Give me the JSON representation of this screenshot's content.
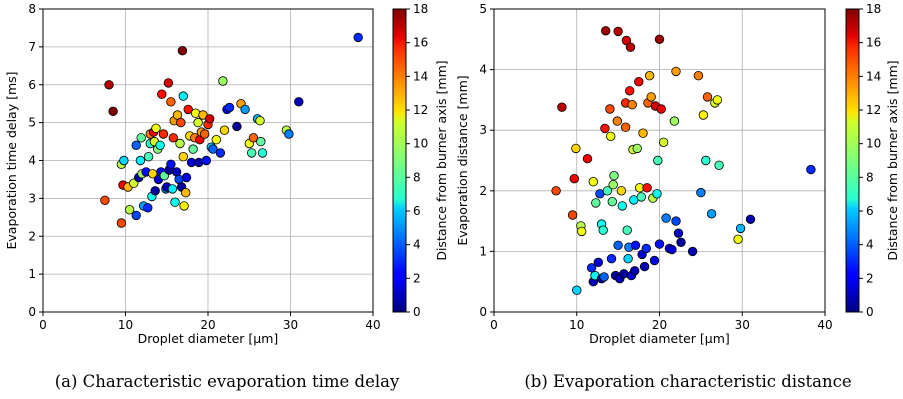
{
  "chart_data": [
    {
      "type": "scatter",
      "caption": "(a) Characteristic evaporation time delay",
      "xlabel": "Droplet diameter [µm]",
      "ylabel": "Evaporation time delay [ms]",
      "xlim": [
        0,
        40
      ],
      "ylim": [
        0,
        8
      ],
      "xticks": [
        0,
        10,
        20,
        30,
        40
      ],
      "yticks": [
        0,
        1,
        2,
        3,
        4,
        5,
        6,
        7,
        8
      ],
      "grid": true,
      "colorbar": {
        "label": "Distance from burner axis [mm]",
        "range": [
          0,
          18
        ],
        "ticks": [
          0,
          2,
          4,
          6,
          8,
          10,
          12,
          14,
          16,
          18
        ],
        "colormap": "jet"
      },
      "points": [
        {
          "x": 7.5,
          "y": 2.95,
          "c": 14.5
        },
        {
          "x": 8.0,
          "y": 6.0,
          "c": 17.0
        },
        {
          "x": 8.5,
          "y": 5.3,
          "c": 18.0
        },
        {
          "x": 9.5,
          "y": 2.35,
          "c": 14.5
        },
        {
          "x": 9.5,
          "y": 3.9,
          "c": 10.0
        },
        {
          "x": 9.7,
          "y": 3.35,
          "c": 16.0
        },
        {
          "x": 9.8,
          "y": 4.0,
          "c": 6.0
        },
        {
          "x": 10.3,
          "y": 3.3,
          "c": 12.5
        },
        {
          "x": 10.5,
          "y": 2.7,
          "c": 10.0
        },
        {
          "x": 11.0,
          "y": 3.4,
          "c": 10.5
        },
        {
          "x": 11.3,
          "y": 4.4,
          "c": 4.0
        },
        {
          "x": 11.3,
          "y": 2.55,
          "c": 3.5
        },
        {
          "x": 11.6,
          "y": 3.55,
          "c": 0.8
        },
        {
          "x": 11.8,
          "y": 4.0,
          "c": 6.5
        },
        {
          "x": 11.9,
          "y": 4.6,
          "c": 8.5
        },
        {
          "x": 12.0,
          "y": 3.65,
          "c": 9.5
        },
        {
          "x": 12.2,
          "y": 2.8,
          "c": 5.0
        },
        {
          "x": 12.5,
          "y": 3.7,
          "c": 2.5
        },
        {
          "x": 12.7,
          "y": 2.75,
          "c": 3.0
        },
        {
          "x": 12.8,
          "y": 4.1,
          "c": 8.0
        },
        {
          "x": 13.0,
          "y": 4.45,
          "c": 7.5
        },
        {
          "x": 13.0,
          "y": 4.7,
          "c": 13.5
        },
        {
          "x": 13.2,
          "y": 3.05,
          "c": 7.0
        },
        {
          "x": 13.3,
          "y": 3.65,
          "c": 12.0
        },
        {
          "x": 13.4,
          "y": 4.75,
          "c": 16.0
        },
        {
          "x": 13.5,
          "y": 4.5,
          "c": 10.5
        },
        {
          "x": 13.6,
          "y": 3.2,
          "c": 0.5
        },
        {
          "x": 13.7,
          "y": 4.85,
          "c": 11.0
        },
        {
          "x": 13.9,
          "y": 4.3,
          "c": 9.0
        },
        {
          "x": 14.0,
          "y": 3.5,
          "c": 1.5
        },
        {
          "x": 14.2,
          "y": 4.4,
          "c": 7.0
        },
        {
          "x": 14.3,
          "y": 3.7,
          "c": 2.0
        },
        {
          "x": 14.4,
          "y": 5.75,
          "c": 15.5
        },
        {
          "x": 14.6,
          "y": 4.7,
          "c": 15.0
        },
        {
          "x": 14.7,
          "y": 3.6,
          "c": 8.5
        },
        {
          "x": 14.9,
          "y": 3.25,
          "c": 4.5
        },
        {
          "x": 15.0,
          "y": 3.3,
          "c": 1.0
        },
        {
          "x": 15.2,
          "y": 6.05,
          "c": 16.5
        },
        {
          "x": 15.3,
          "y": 3.75,
          "c": 0.8
        },
        {
          "x": 15.5,
          "y": 5.55,
          "c": 14.0
        },
        {
          "x": 15.5,
          "y": 3.9,
          "c": 2.5
        },
        {
          "x": 15.7,
          "y": 3.25,
          "c": 6.5
        },
        {
          "x": 15.8,
          "y": 4.6,
          "c": 15.0
        },
        {
          "x": 15.9,
          "y": 5.05,
          "c": 13.0
        },
        {
          "x": 16.0,
          "y": 2.9,
          "c": 7.0
        },
        {
          "x": 16.2,
          "y": 3.7,
          "c": 1.2
        },
        {
          "x": 16.3,
          "y": 5.2,
          "c": 12.5
        },
        {
          "x": 16.5,
          "y": 3.5,
          "c": 3.5
        },
        {
          "x": 16.6,
          "y": 4.45,
          "c": 10.0
        },
        {
          "x": 16.7,
          "y": 5.0,
          "c": 14.5
        },
        {
          "x": 16.8,
          "y": 3.3,
          "c": 0.5
        },
        {
          "x": 16.9,
          "y": 6.9,
          "c": 18.0
        },
        {
          "x": 17.0,
          "y": 5.7,
          "c": 6.5
        },
        {
          "x": 17.0,
          "y": 4.1,
          "c": 12.0
        },
        {
          "x": 17.1,
          "y": 2.8,
          "c": 11.5
        },
        {
          "x": 17.3,
          "y": 3.15,
          "c": 12.5
        },
        {
          "x": 17.4,
          "y": 3.55,
          "c": 1.8
        },
        {
          "x": 17.6,
          "y": 5.35,
          "c": 15.5
        },
        {
          "x": 17.8,
          "y": 4.65,
          "c": 12.0
        },
        {
          "x": 18.0,
          "y": 3.95,
          "c": 1.5
        },
        {
          "x": 18.2,
          "y": 4.3,
          "c": 8.5
        },
        {
          "x": 18.4,
          "y": 4.6,
          "c": 13.5
        },
        {
          "x": 18.5,
          "y": 5.25,
          "c": 11.0
        },
        {
          "x": 18.8,
          "y": 5.0,
          "c": 10.5
        },
        {
          "x": 18.9,
          "y": 3.95,
          "c": 0.8
        },
        {
          "x": 19.0,
          "y": 4.55,
          "c": 16.0
        },
        {
          "x": 19.2,
          "y": 4.75,
          "c": 13.0
        },
        {
          "x": 19.4,
          "y": 5.2,
          "c": 12.5
        },
        {
          "x": 19.6,
          "y": 4.7,
          "c": 14.0
        },
        {
          "x": 19.8,
          "y": 4.0,
          "c": 2.5
        },
        {
          "x": 20.0,
          "y": 4.95,
          "c": 15.0
        },
        {
          "x": 20.2,
          "y": 5.1,
          "c": 16.5
        },
        {
          "x": 20.4,
          "y": 4.35,
          "c": 6.0
        },
        {
          "x": 20.6,
          "y": 4.3,
          "c": 4.0
        },
        {
          "x": 21.0,
          "y": 4.55,
          "c": 11.0
        },
        {
          "x": 21.5,
          "y": 4.2,
          "c": 3.0
        },
        {
          "x": 21.8,
          "y": 6.1,
          "c": 9.5
        },
        {
          "x": 22.0,
          "y": 4.8,
          "c": 12.0
        },
        {
          "x": 22.3,
          "y": 5.35,
          "c": 2.0
        },
        {
          "x": 22.6,
          "y": 5.4,
          "c": 3.0
        },
        {
          "x": 23.5,
          "y": 4.9,
          "c": 0.5
        },
        {
          "x": 24.0,
          "y": 5.5,
          "c": 13.0
        },
        {
          "x": 24.5,
          "y": 5.35,
          "c": 5.0
        },
        {
          "x": 25.0,
          "y": 4.45,
          "c": 11.0
        },
        {
          "x": 25.3,
          "y": 4.2,
          "c": 8.0
        },
        {
          "x": 25.5,
          "y": 4.6,
          "c": 14.0
        },
        {
          "x": 26.0,
          "y": 5.1,
          "c": 5.5
        },
        {
          "x": 26.3,
          "y": 5.05,
          "c": 10.5
        },
        {
          "x": 26.4,
          "y": 4.5,
          "c": 8.5
        },
        {
          "x": 26.6,
          "y": 4.2,
          "c": 7.5
        },
        {
          "x": 29.5,
          "y": 4.8,
          "c": 10.0
        },
        {
          "x": 29.8,
          "y": 4.7,
          "c": 4.5
        },
        {
          "x": 31.0,
          "y": 5.55,
          "c": 1.0
        },
        {
          "x": 38.2,
          "y": 7.25,
          "c": 3.0
        }
      ]
    },
    {
      "type": "scatter",
      "caption": "(b) Evaporation characteristic distance",
      "xlabel": "Droplet diameter [µm]",
      "ylabel": "Evaporation distance [mm]",
      "xlim": [
        0,
        40
      ],
      "ylim": [
        0,
        5
      ],
      "xticks": [
        0,
        10,
        20,
        30,
        40
      ],
      "yticks": [
        0,
        1,
        2,
        3,
        4,
        5
      ],
      "grid": true,
      "colorbar": {
        "label": "Distance from burner axis [mm]",
        "range": [
          0,
          18
        ],
        "ticks": [
          0,
          2,
          4,
          6,
          8,
          10,
          12,
          14,
          16,
          18
        ],
        "colormap": "jet"
      },
      "points": [
        {
          "x": 7.5,
          "y": 2.0,
          "c": 14.5
        },
        {
          "x": 8.2,
          "y": 3.38,
          "c": 17.0
        },
        {
          "x": 9.5,
          "y": 1.6,
          "c": 14.5
        },
        {
          "x": 9.7,
          "y": 2.2,
          "c": 16.0
        },
        {
          "x": 9.9,
          "y": 2.7,
          "c": 12.0
        },
        {
          "x": 10.0,
          "y": 0.36,
          "c": 6.0
        },
        {
          "x": 10.5,
          "y": 1.42,
          "c": 10.0
        },
        {
          "x": 10.6,
          "y": 1.33,
          "c": 11.0
        },
        {
          "x": 11.3,
          "y": 2.53,
          "c": 16.0
        },
        {
          "x": 11.8,
          "y": 0.73,
          "c": 3.0
        },
        {
          "x": 12.0,
          "y": 0.5,
          "c": 1.0
        },
        {
          "x": 12.0,
          "y": 2.15,
          "c": 11.0
        },
        {
          "x": 12.2,
          "y": 0.6,
          "c": 7.0
        },
        {
          "x": 12.3,
          "y": 1.8,
          "c": 8.5
        },
        {
          "x": 12.6,
          "y": 0.82,
          "c": 1.5
        },
        {
          "x": 12.8,
          "y": 1.95,
          "c": 3.5
        },
        {
          "x": 13.0,
          "y": 1.45,
          "c": 7.0
        },
        {
          "x": 13.0,
          "y": 0.55,
          "c": 0.8
        },
        {
          "x": 13.2,
          "y": 1.35,
          "c": 7.5
        },
        {
          "x": 13.3,
          "y": 0.58,
          "c": 4.0
        },
        {
          "x": 13.4,
          "y": 3.03,
          "c": 15.5
        },
        {
          "x": 13.5,
          "y": 4.64,
          "c": 17.5
        },
        {
          "x": 13.7,
          "y": 2.0,
          "c": 8.0
        },
        {
          "x": 14.0,
          "y": 3.35,
          "c": 14.5
        },
        {
          "x": 14.1,
          "y": 2.9,
          "c": 11.0
        },
        {
          "x": 14.2,
          "y": 0.88,
          "c": 3.0
        },
        {
          "x": 14.3,
          "y": 1.82,
          "c": 8.5
        },
        {
          "x": 14.4,
          "y": 2.1,
          "c": 9.5
        },
        {
          "x": 14.5,
          "y": 2.25,
          "c": 9.0
        },
        {
          "x": 14.7,
          "y": 0.6,
          "c": 0.5
        },
        {
          "x": 14.9,
          "y": 3.15,
          "c": 13.5
        },
        {
          "x": 15.0,
          "y": 1.1,
          "c": 4.0
        },
        {
          "x": 15.0,
          "y": 4.63,
          "c": 17.0
        },
        {
          "x": 15.2,
          "y": 0.55,
          "c": 1.0
        },
        {
          "x": 15.4,
          "y": 2.0,
          "c": 12.0
        },
        {
          "x": 15.5,
          "y": 1.75,
          "c": 7.0
        },
        {
          "x": 15.7,
          "y": 0.63,
          "c": 0.5
        },
        {
          "x": 15.9,
          "y": 3.05,
          "c": 14.0
        },
        {
          "x": 15.9,
          "y": 3.45,
          "c": 15.0
        },
        {
          "x": 16.0,
          "y": 4.48,
          "c": 16.5
        },
        {
          "x": 16.1,
          "y": 1.35,
          "c": 8.0
        },
        {
          "x": 16.2,
          "y": 0.88,
          "c": 6.0
        },
        {
          "x": 16.3,
          "y": 1.07,
          "c": 4.5
        },
        {
          "x": 16.4,
          "y": 3.65,
          "c": 15.5
        },
        {
          "x": 16.5,
          "y": 4.37,
          "c": 17.0
        },
        {
          "x": 16.6,
          "y": 0.6,
          "c": 1.5
        },
        {
          "x": 16.7,
          "y": 3.42,
          "c": 13.5
        },
        {
          "x": 16.8,
          "y": 2.68,
          "c": 10.5
        },
        {
          "x": 16.9,
          "y": 1.85,
          "c": 6.5
        },
        {
          "x": 17.0,
          "y": 0.68,
          "c": 0.8
        },
        {
          "x": 17.1,
          "y": 1.1,
          "c": 2.5
        },
        {
          "x": 17.3,
          "y": 2.7,
          "c": 9.5
        },
        {
          "x": 17.5,
          "y": 3.8,
          "c": 16.0
        },
        {
          "x": 17.6,
          "y": 2.05,
          "c": 11.0
        },
        {
          "x": 17.8,
          "y": 1.9,
          "c": 8.0
        },
        {
          "x": 17.9,
          "y": 0.95,
          "c": 1.5
        },
        {
          "x": 18.0,
          "y": 2.95,
          "c": 12.5
        },
        {
          "x": 18.2,
          "y": 0.75,
          "c": 1.0
        },
        {
          "x": 18.4,
          "y": 1.05,
          "c": 3.0
        },
        {
          "x": 18.5,
          "y": 2.05,
          "c": 15.5
        },
        {
          "x": 18.6,
          "y": 3.45,
          "c": 14.0
        },
        {
          "x": 18.8,
          "y": 3.9,
          "c": 12.5
        },
        {
          "x": 19.0,
          "y": 3.55,
          "c": 13.0
        },
        {
          "x": 19.2,
          "y": 1.88,
          "c": 10.0
        },
        {
          "x": 19.4,
          "y": 0.85,
          "c": 2.0
        },
        {
          "x": 19.5,
          "y": 3.4,
          "c": 16.5
        },
        {
          "x": 19.7,
          "y": 1.95,
          "c": 7.0
        },
        {
          "x": 19.8,
          "y": 2.5,
          "c": 8.0
        },
        {
          "x": 20.0,
          "y": 1.12,
          "c": 2.5
        },
        {
          "x": 20.0,
          "y": 4.5,
          "c": 17.5
        },
        {
          "x": 20.2,
          "y": 3.35,
          "c": 16.0
        },
        {
          "x": 20.5,
          "y": 2.8,
          "c": 10.5
        },
        {
          "x": 20.8,
          "y": 1.55,
          "c": 4.5
        },
        {
          "x": 21.2,
          "y": 1.05,
          "c": 2.0
        },
        {
          "x": 21.5,
          "y": 1.03,
          "c": 1.5
        },
        {
          "x": 21.8,
          "y": 3.15,
          "c": 9.5
        },
        {
          "x": 22.0,
          "y": 1.5,
          "c": 3.5
        },
        {
          "x": 22.0,
          "y": 3.97,
          "c": 13.0
        },
        {
          "x": 22.3,
          "y": 1.3,
          "c": 1.0
        },
        {
          "x": 22.6,
          "y": 1.15,
          "c": 0.5
        },
        {
          "x": 24.0,
          "y": 1.0,
          "c": 1.0
        },
        {
          "x": 24.7,
          "y": 3.9,
          "c": 13.5
        },
        {
          "x": 25.0,
          "y": 1.97,
          "c": 4.5
        },
        {
          "x": 25.3,
          "y": 3.25,
          "c": 11.5
        },
        {
          "x": 25.6,
          "y": 2.5,
          "c": 7.5
        },
        {
          "x": 25.8,
          "y": 3.55,
          "c": 14.0
        },
        {
          "x": 26.3,
          "y": 1.62,
          "c": 5.0
        },
        {
          "x": 26.7,
          "y": 3.45,
          "c": 10.5
        },
        {
          "x": 27.0,
          "y": 3.5,
          "c": 11.0
        },
        {
          "x": 27.2,
          "y": 2.42,
          "c": 8.0
        },
        {
          "x": 29.5,
          "y": 1.2,
          "c": 11.0
        },
        {
          "x": 29.8,
          "y": 1.38,
          "c": 5.5
        },
        {
          "x": 31.0,
          "y": 1.53,
          "c": 0.8
        },
        {
          "x": 38.3,
          "y": 2.35,
          "c": 3.0
        }
      ]
    }
  ]
}
